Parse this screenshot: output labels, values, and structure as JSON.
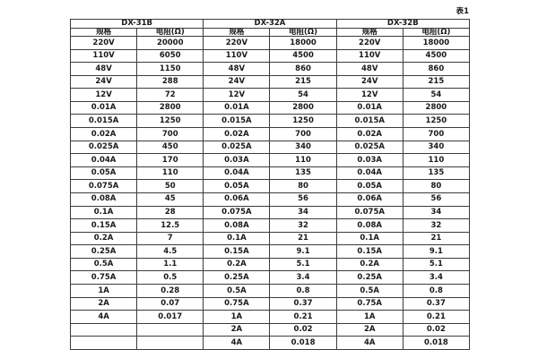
{
  "caption": "表1",
  "table": {
    "groups": [
      {
        "name": "DX-31B",
        "spec_header": "规格",
        "res_header": "电阻(Ω)"
      },
      {
        "name": "DX-32A",
        "spec_header": "规格",
        "res_header": "电阻(Ω)"
      },
      {
        "name": "DX-32B",
        "spec_header": "规格",
        "res_header": "电阻(Ω)"
      }
    ],
    "rows": [
      [
        "220V",
        "20000",
        "220V",
        "18000",
        "220V",
        "18000"
      ],
      [
        "110V",
        "6050",
        "110V",
        "4500",
        "110V",
        "4500"
      ],
      [
        "48V",
        "1150",
        "48V",
        "860",
        "48V",
        "860"
      ],
      [
        "24V",
        "288",
        "24V",
        "215",
        "24V",
        "215"
      ],
      [
        "12V",
        "72",
        "12V",
        "54",
        "12V",
        "54"
      ],
      [
        "0.01A",
        "2800",
        "0.01A",
        "2800",
        "0.01A",
        "2800"
      ],
      [
        "0.015A",
        "1250",
        "0.015A",
        "1250",
        "0.015A",
        "1250"
      ],
      [
        "0.02A",
        "700",
        "0.02A",
        "700",
        "0.02A",
        "700"
      ],
      [
        "0.025A",
        "450",
        "0.025A",
        "340",
        "0.025A",
        "340"
      ],
      [
        "0.04A",
        "170",
        "0.03A",
        "110",
        "0.03A",
        "110"
      ],
      [
        "0.05A",
        "110",
        "0.04A",
        "135",
        "0.04A",
        "135"
      ],
      [
        "0.075A",
        "50",
        "0.05A",
        "80",
        "0.05A",
        "80"
      ],
      [
        "0.08A",
        "45",
        "0.06A",
        "56",
        "0.06A",
        "56"
      ],
      [
        "0.1A",
        "28",
        "0.075A",
        "34",
        "0.075A",
        "34"
      ],
      [
        "0.15A",
        "12.5",
        "0.08A",
        "32",
        "0.08A",
        "32"
      ],
      [
        "0.2A",
        "7",
        "0.1A",
        "21",
        "0.1A",
        "21"
      ],
      [
        "0.25A",
        "4.5",
        "0.15A",
        "9.1",
        "0.15A",
        "9.1"
      ],
      [
        "0.5A",
        "1.1",
        "0.2A",
        "5.1",
        "0.2A",
        "5.1"
      ],
      [
        "0.75A",
        "0.5",
        "0.25A",
        "3.4",
        "0.25A",
        "3.4"
      ],
      [
        "1A",
        "0.28",
        "0.5A",
        "0.8",
        "0.5A",
        "0.8"
      ],
      [
        "2A",
        "0.07",
        "0.75A",
        "0.37",
        "0.75A",
        "0.37"
      ],
      [
        "4A",
        "0.017",
        "1A",
        "0.21",
        "1A",
        "0.21"
      ],
      [
        "",
        "",
        "2A",
        "0.02",
        "2A",
        "0.02"
      ],
      [
        "",
        "",
        "4A",
        "0.018",
        "4A",
        "0.018"
      ]
    ]
  }
}
